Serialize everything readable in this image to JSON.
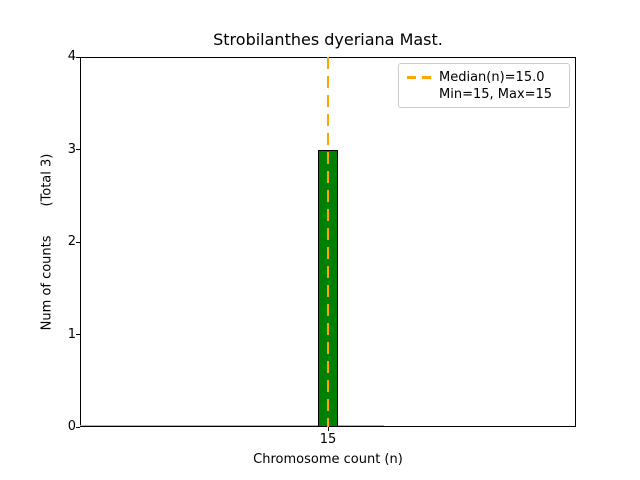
{
  "chart_data": {
    "type": "bar",
    "title": "Strobilanthes dyeriana Mast.",
    "xlabel": "Chromosome count (n)",
    "ylabel": "Num of counts       (Total 3)",
    "categories": [
      "15"
    ],
    "values": [
      3
    ],
    "total": 3,
    "ylim": [
      0,
      4
    ],
    "yticks": [
      "0",
      "1",
      "2",
      "3",
      "4"
    ],
    "xticks": [
      "15"
    ],
    "stats": {
      "median": 15.0,
      "min": 15,
      "max": 15
    },
    "legend": {
      "position": "upper right",
      "entries": [
        {
          "label": "Median(n)=15.0",
          "sample": "dashed-line"
        },
        {
          "label": "Min=15, Max=15",
          "sample": "none"
        }
      ]
    },
    "colors": {
      "bar_fill": "#008000",
      "bar_edge": "#000000",
      "median_line": "#FFA500",
      "legend_border": "#cccccc",
      "axis": "#000000",
      "zero_baseline": "#b2b2b2"
    },
    "grid": false,
    "layout": {
      "bar_center_frac": 0.5,
      "bar_width_frac": 0.0423,
      "zero_baseline_end_frac": 0.613
    }
  }
}
